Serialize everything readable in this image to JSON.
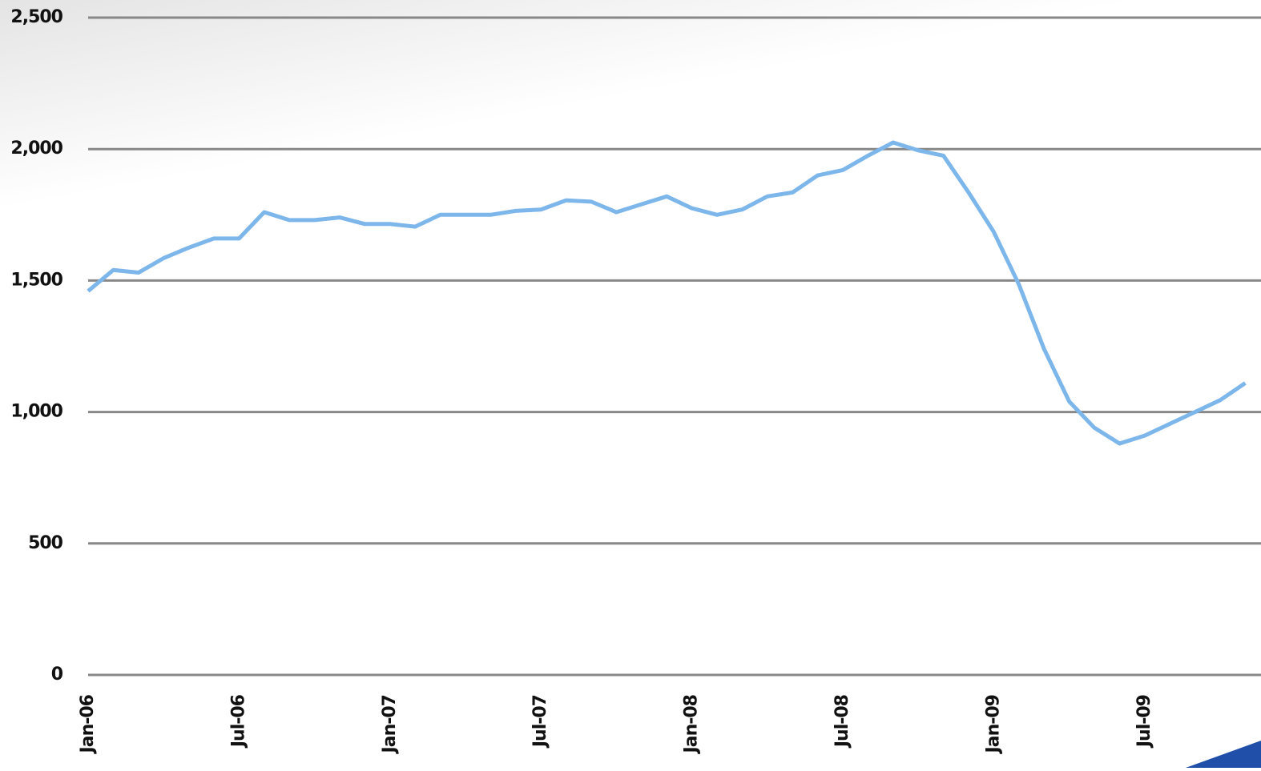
{
  "chart_data": {
    "type": "line",
    "categories": [
      "Jan-06",
      null,
      null,
      null,
      null,
      null,
      "Jul-06",
      null,
      null,
      null,
      null,
      null,
      "Jan-07",
      null,
      null,
      null,
      null,
      null,
      "Jul-07",
      null,
      null,
      null,
      null,
      null,
      "Jan-08",
      null,
      null,
      null,
      null,
      null,
      "Jul-08",
      null,
      null,
      null,
      null,
      null,
      "Jan-09",
      null,
      null,
      null,
      null,
      null,
      "Jul-09",
      null,
      null,
      null,
      null
    ],
    "series": [
      {
        "color": "#7cb6ea",
        "values": [
          1460,
          1540,
          1530,
          1585,
          1625,
          1660,
          1660,
          1760,
          1730,
          1730,
          1740,
          1715,
          1715,
          1705,
          1750,
          1750,
          1750,
          1765,
          1770,
          1805,
          1800,
          1760,
          1790,
          1820,
          1775,
          1750,
          1770,
          1820,
          1835,
          1900,
          1920,
          1975,
          2025,
          1995,
          1975,
          1835,
          1685,
          1485,
          1240,
          1040,
          940,
          880,
          910,
          955,
          1000,
          1045,
          1110
        ]
      }
    ],
    "ylim": [
      0,
      2500
    ],
    "yticks": [
      0,
      500,
      {
        "value": 1000,
        "label": "1,000"
      },
      {
        "value": 1500,
        "label": "1,500"
      },
      {
        "value": 2000,
        "label": "2,000"
      },
      {
        "value": 2500,
        "label": "2,500"
      }
    ],
    "grid": true
  }
}
